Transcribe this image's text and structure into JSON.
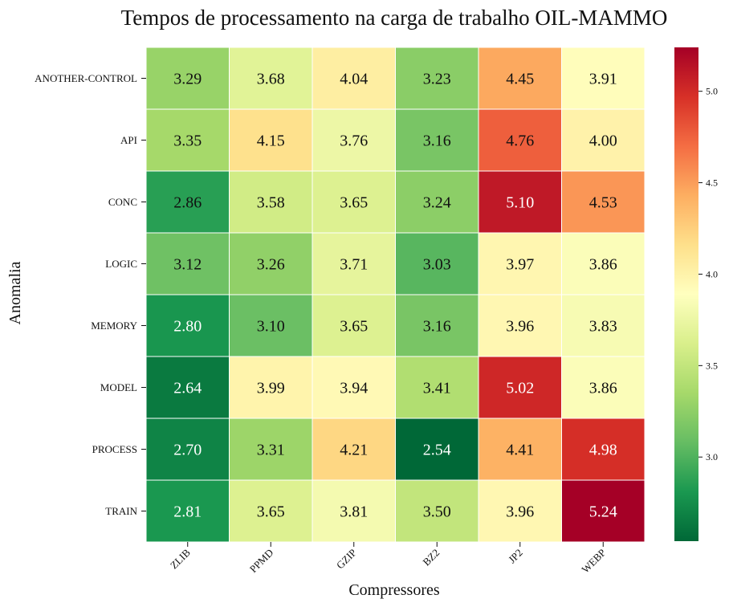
{
  "chart_data": {
    "type": "heatmap",
    "title": "Tempos de processamento na carga de trabalho OIL-MAMMO",
    "xlabel": "Compressores",
    "ylabel": "Anomalia",
    "columns": [
      "ZLIB",
      "PPMD",
      "GZIP",
      "BZ2",
      "JP2",
      "WEBP"
    ],
    "rows": [
      "ANOTHER-CONTROL",
      "API",
      "CONC",
      "LOGIC",
      "MEMORY",
      "MODEL",
      "PROCESS",
      "TRAIN"
    ],
    "values": [
      [
        3.29,
        3.68,
        4.04,
        3.23,
        4.45,
        3.91
      ],
      [
        3.35,
        4.15,
        3.76,
        3.16,
        4.76,
        4.0
      ],
      [
        2.86,
        3.58,
        3.65,
        3.24,
        5.1,
        4.53
      ],
      [
        3.12,
        3.26,
        3.71,
        3.03,
        3.97,
        3.86
      ],
      [
        2.8,
        3.1,
        3.65,
        3.16,
        3.96,
        3.83
      ],
      [
        2.64,
        3.99,
        3.94,
        3.41,
        5.02,
        3.86
      ],
      [
        2.7,
        3.31,
        4.21,
        2.54,
        4.41,
        4.98
      ],
      [
        2.81,
        3.65,
        3.81,
        3.5,
        3.96,
        5.24
      ]
    ],
    "colormap": "RdYlGn_r",
    "vmin": 2.54,
    "vmax": 5.24,
    "colorbar_ticks": [
      "3.0",
      "3.5",
      "4.0",
      "4.5",
      "5.0"
    ],
    "colorbar_tick_values": [
      3.0,
      3.5,
      4.0,
      4.5,
      5.0
    ]
  }
}
